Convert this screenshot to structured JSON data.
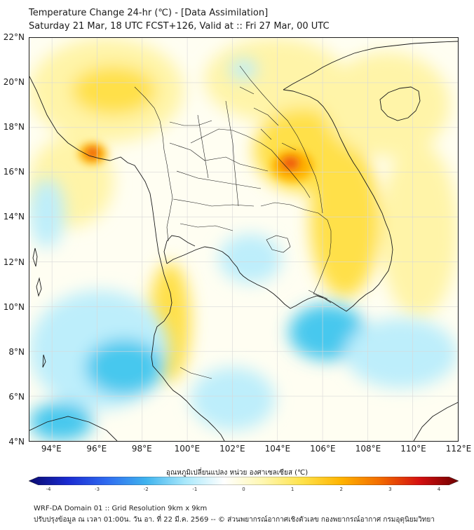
{
  "title_line1": "Temperature Change 24-hr (℃) - [Data Assimilation]",
  "title_line2": "Saturday 21 Mar, 18 UTC FCST+126, Valid at :: Fri 27 Mar, 00 UTC",
  "lat_labels": [
    "22°N",
    "20°N",
    "18°N",
    "16°N",
    "14°N",
    "12°N",
    "10°N",
    "8°N",
    "6°N",
    "4°N"
  ],
  "lon_labels": [
    "94°E",
    "96°E",
    "98°E",
    "100°E",
    "102°E",
    "104°E",
    "106°E",
    "108°E",
    "110°E",
    "112°E"
  ],
  "colorbar": {
    "label": "อุณหภูมิเปลี่ยนแปลง หน่วย องศาเซลเซียส (℃)",
    "ticks": [
      "-4",
      "-3",
      "-2",
      "-1",
      "0",
      "1",
      "2",
      "3",
      "4"
    ],
    "colors": [
      "#0a0a6e",
      "#1a2bd1",
      "#2f6bf0",
      "#3fb3ee",
      "#a8e8fb",
      "#ffffff",
      "#fff7b0",
      "#ffe24a",
      "#ffb300",
      "#f26a00",
      "#d41010",
      "#6e0000"
    ]
  },
  "footer_line1": "WRF-DA Domain 01 :: Grid Resolution 9km x 9km",
  "footer_line2": "ปรับปรุงข้อมูล ณ เวลา 01:00น. วัน อา. ที่ 22 มี.ค. 2569 -- © ส่วนพยากรณ์อากาศเชิงตัวเลข กองพยากรณ์อากาศ กรมอุตุนิยมวิทยา",
  "field_colors": {
    "cool_strong": "#46c8ee",
    "cool_light": "#bdeefb",
    "neutral": "#fffef2",
    "warm_light": "#fff4a8",
    "warm": "#ffe04a",
    "hot": "#ffb300",
    "very_hot": "#f05a10",
    "coast": "#1a1a1a",
    "grid": "#d8d8d8"
  }
}
